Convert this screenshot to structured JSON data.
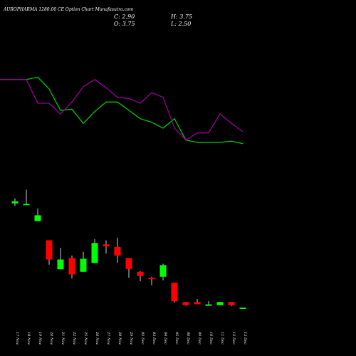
{
  "header": {
    "title": "AUROPHARMA 1280.00 CE Option Chart Munafasutra.com"
  },
  "ohlc": {
    "close": "C: 2.90",
    "open": "O: 3.75",
    "high": "H: 3.75",
    "low": "L: 2.50"
  },
  "colors": {
    "background": "#000000",
    "up": "#00ff00",
    "down": "#ff0000",
    "line_upper": "#00cc00",
    "line_lower": "#990099",
    "text": "#ffffff"
  },
  "chart_data": {
    "type": "candlestick",
    "categories": [
      "17 Nov",
      "18 Nov",
      "19 Nov",
      "20 Nov",
      "21 Nov",
      "22 Nov",
      "25 Nov",
      "26 Nov",
      "27 Nov",
      "28 Nov",
      "29 Nov",
      "02 Dec",
      "03 Dec",
      "04 Dec",
      "05 Dec",
      "06 Dec",
      "09 Dec",
      "10 Dec",
      "11 Dec",
      "12 Dec",
      "13 Dec"
    ],
    "candles": [
      {
        "open": 84.5,
        "close": 86.7,
        "high": 89.5,
        "low": 82.0
      },
      {
        "open": 84.1,
        "close": 84.1,
        "high": 98.3,
        "low": 84.1
      },
      {
        "open": 66.8,
        "close": 72.6,
        "high": 79.4,
        "low": 66.8
      },
      {
        "open": 47.5,
        "close": 28.2,
        "high": 47.5,
        "low": 23.0
      },
      {
        "open": 18.4,
        "close": 28.2,
        "high": 40.1,
        "low": 18.4
      },
      {
        "open": 29.7,
        "close": 13.3,
        "high": 32.2,
        "low": 9.1
      },
      {
        "open": 15.9,
        "close": 29.0,
        "high": 35.9,
        "low": 15.9
      },
      {
        "open": 24.8,
        "close": 44.8,
        "high": 48.6,
        "low": 24.8
      },
      {
        "open": 43.4,
        "close": 41.5,
        "high": 47.5,
        "low": 34.1
      },
      {
        "open": 40.8,
        "close": 32.2,
        "high": 50.1,
        "low": 24.8
      },
      {
        "open": 29.7,
        "close": 18.8,
        "high": 29.7,
        "low": 9.9
      },
      {
        "open": 15.9,
        "close": 11.8,
        "high": 16.6,
        "low": 6.5
      },
      {
        "open": 9.9,
        "close": 8.8,
        "high": 10.9,
        "low": 2.4
      },
      {
        "open": 10.9,
        "close": 22.6,
        "high": 24.0,
        "low": 7.3
      },
      {
        "open": 5.0,
        "close": -13.7,
        "high": 5.0,
        "low": -15.0
      },
      {
        "open": -14.5,
        "close": -17.5,
        "high": -14.5,
        "low": -18.0
      },
      {
        "open": -14.5,
        "close": -16.7,
        "high": -11.4,
        "low": -16.7
      },
      {
        "open": -17.0,
        "close": -16.8,
        "high": -13.5,
        "low": -18.0
      },
      {
        "open": -17.5,
        "close": -14.5,
        "high": -14.2,
        "low": -17.5
      },
      {
        "open": -14.5,
        "close": -17.5,
        "high": -14.5,
        "low": -18.5
      },
      {
        "open": -20.0,
        "close": -20.0,
        "high": -20.0,
        "low": -20.0
      }
    ],
    "line_upper": [
      89,
      89,
      91,
      81,
      63,
      64,
      52,
      62,
      70,
      70,
      63,
      56,
      53,
      48,
      56,
      38,
      36,
      36,
      36,
      37,
      35
    ],
    "line_lower": [
      89,
      89,
      69,
      69,
      60,
      70,
      83,
      89,
      82,
      74,
      73,
      69,
      78,
      74,
      48,
      38,
      44,
      44,
      60,
      52,
      45
    ],
    "candle_ylim": [
      -40,
      110
    ],
    "line_ylim": [
      0,
      120
    ],
    "grid": false
  }
}
